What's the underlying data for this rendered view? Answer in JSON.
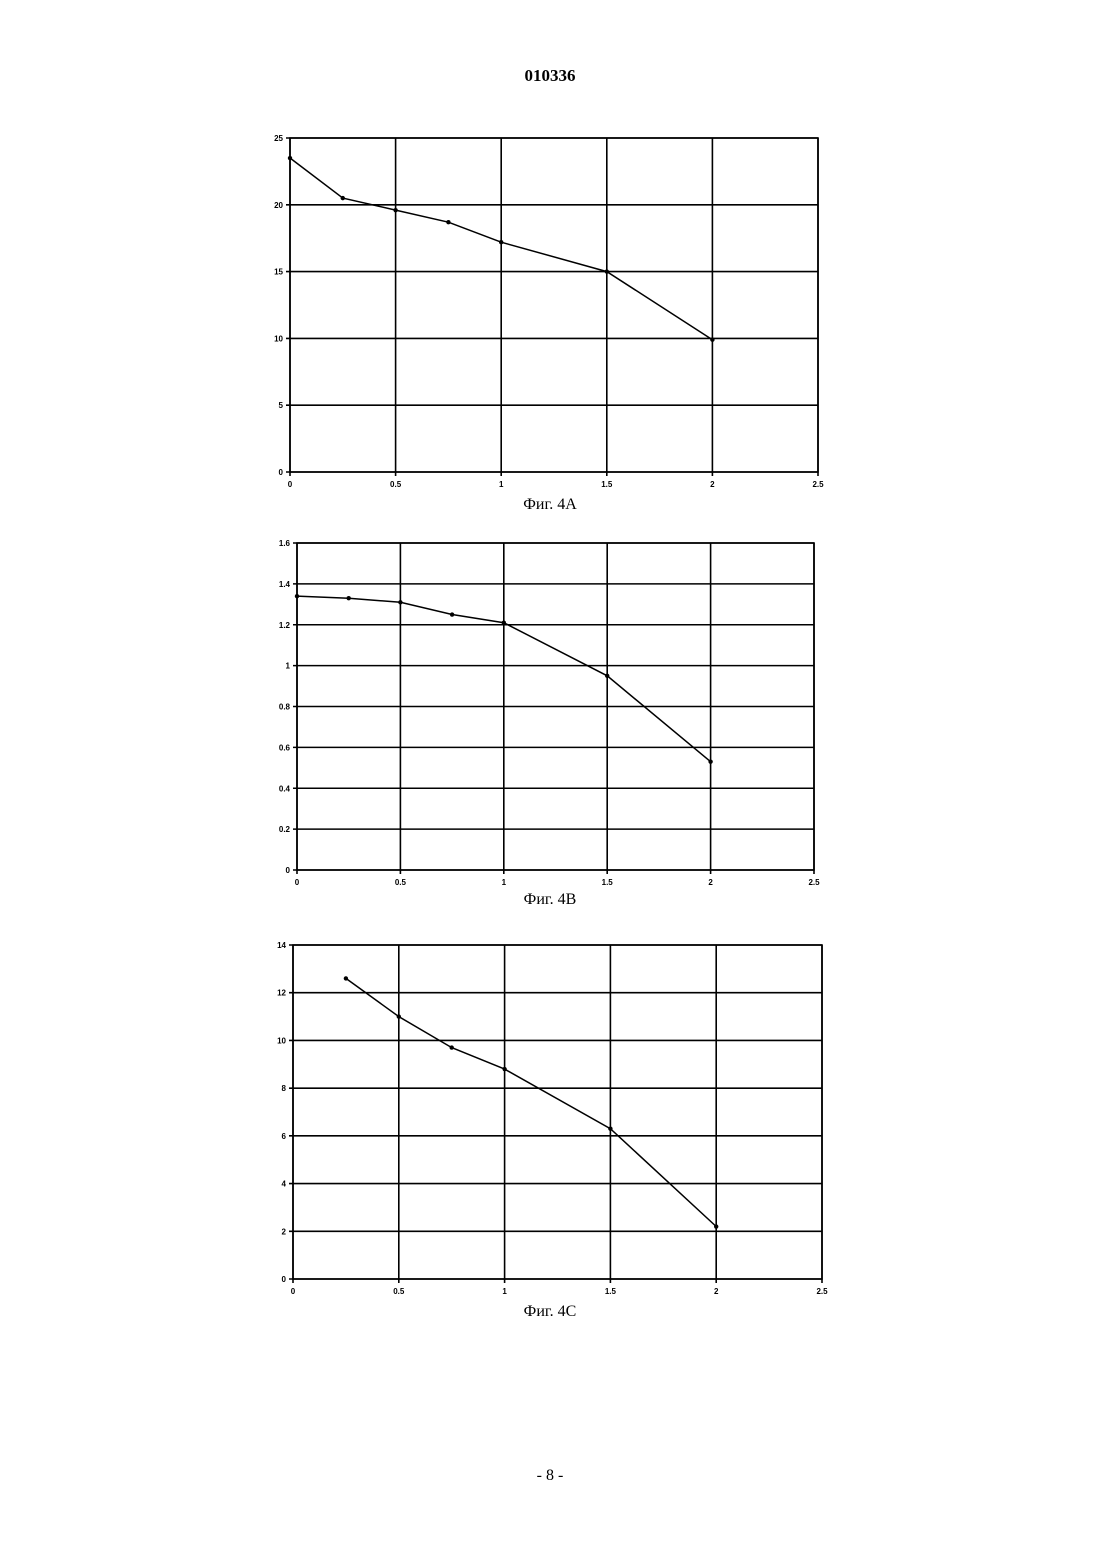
{
  "header": {
    "doc_number": "010336"
  },
  "footer": {
    "page_number": "- 8 -"
  },
  "chart_data": [
    {
      "type": "line",
      "caption": "Фиг. 4А",
      "xlim": [
        0,
        2.5
      ],
      "ylim": [
        0,
        25
      ],
      "xticks": [
        "0",
        "0.5",
        "1",
        "1.5",
        "2",
        "2.5"
      ],
      "yticks": [
        "0",
        "5",
        "10",
        "15",
        "20",
        "25"
      ],
      "grid": true,
      "series": [
        {
          "x": [
            0,
            0.25,
            0.5,
            0.75,
            1,
            1.5,
            2
          ],
          "y": [
            23.5,
            20.5,
            19.6,
            18.7,
            17.2,
            15.0,
            9.9
          ]
        }
      ]
    },
    {
      "type": "line",
      "caption": "Фиг. 4В",
      "xlim": [
        0,
        2.5
      ],
      "ylim": [
        0,
        1.6
      ],
      "xticks": [
        "0",
        "0.5",
        "1",
        "1.5",
        "2",
        "2.5"
      ],
      "yticks": [
        "0",
        "0.2",
        "0.4",
        "0.6",
        "0.8",
        "1",
        "1.2",
        "1.4",
        "1.6"
      ],
      "grid": true,
      "series": [
        {
          "x": [
            0,
            0.25,
            0.5,
            0.75,
            1,
            1.5,
            2
          ],
          "y": [
            1.34,
            1.33,
            1.31,
            1.25,
            1.21,
            0.95,
            0.53
          ]
        }
      ]
    },
    {
      "type": "line",
      "caption": "Фиг. 4С",
      "xlim": [
        0,
        2.5
      ],
      "ylim": [
        0,
        14
      ],
      "xticks": [
        "0",
        "0.5",
        "1",
        "1.5",
        "2",
        "2.5"
      ],
      "yticks": [
        "0",
        "2",
        "4",
        "6",
        "8",
        "10",
        "12",
        "14"
      ],
      "grid": true,
      "series": [
        {
          "x": [
            0.25,
            0.5,
            0.75,
            1,
            1.5,
            2
          ],
          "y": [
            12.6,
            11.0,
            9.7,
            8.8,
            6.3,
            2.2
          ]
        }
      ]
    }
  ]
}
